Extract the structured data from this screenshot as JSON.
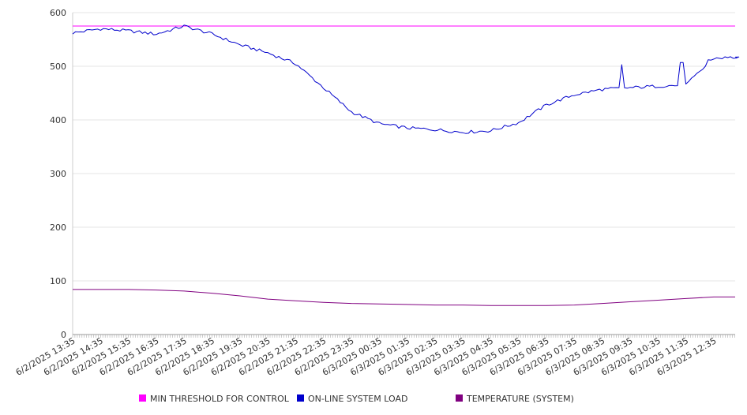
{
  "chart_data": {
    "type": "line",
    "title": "",
    "xlabel": "",
    "ylabel": "",
    "ylim": [
      0,
      600
    ],
    "yticks": [
      0,
      100,
      200,
      300,
      400,
      500,
      600
    ],
    "grid": true,
    "legend_position": "bottom",
    "x": [
      "6/2/2025 13:35",
      "6/2/2025 14:35",
      "6/2/2025 15:35",
      "6/2/2025 16:35",
      "6/2/2025 17:35",
      "6/2/2025 18:35",
      "6/2/2025 19:35",
      "6/2/2025 20:35",
      "6/2/2025 21:35",
      "6/2/2025 22:35",
      "6/2/2025 23:35",
      "6/3/2025 00:35",
      "6/3/2025 01:35",
      "6/3/2025 02:35",
      "6/3/2025 03:35",
      "6/3/2025 04:35",
      "6/3/2025 05:35",
      "6/3/2025 06:35",
      "6/3/2025 07:35",
      "6/3/2025 08:35",
      "6/3/2025 09:35",
      "6/3/2025 10:35",
      "6/3/2025 11:35",
      "6/3/2025 12:35"
    ],
    "series": [
      {
        "name": "MIN THRESHOLD FOR CONTROL",
        "color": "#ff00ff",
        "values": [
          575,
          575,
          575,
          575,
          575,
          575,
          575,
          575,
          575,
          575,
          575,
          575,
          575,
          575,
          575,
          575,
          575,
          575,
          575,
          575,
          575,
          575,
          575,
          575
        ]
      },
      {
        "name": "ON-LINE SYSTEM LOAD",
        "color": "#0000cc",
        "values": [
          562,
          570,
          566,
          560,
          575,
          560,
          540,
          525,
          505,
          460,
          415,
          393,
          385,
          382,
          377,
          380,
          395,
          428,
          447,
          457,
          460,
          463,
          465,
          515
        ]
      },
      {
        "name": "TEMPERATURE (SYSTEM)",
        "color": "#800080",
        "values": [
          84,
          84,
          84,
          83,
          81,
          77,
          72,
          66,
          63,
          60,
          58,
          57,
          56,
          55,
          55,
          54,
          54,
          54,
          55,
          58,
          61,
          64,
          67,
          70
        ]
      }
    ],
    "tail": {
      "x_label": "",
      "values": [
        575,
        517,
        70
      ]
    }
  }
}
